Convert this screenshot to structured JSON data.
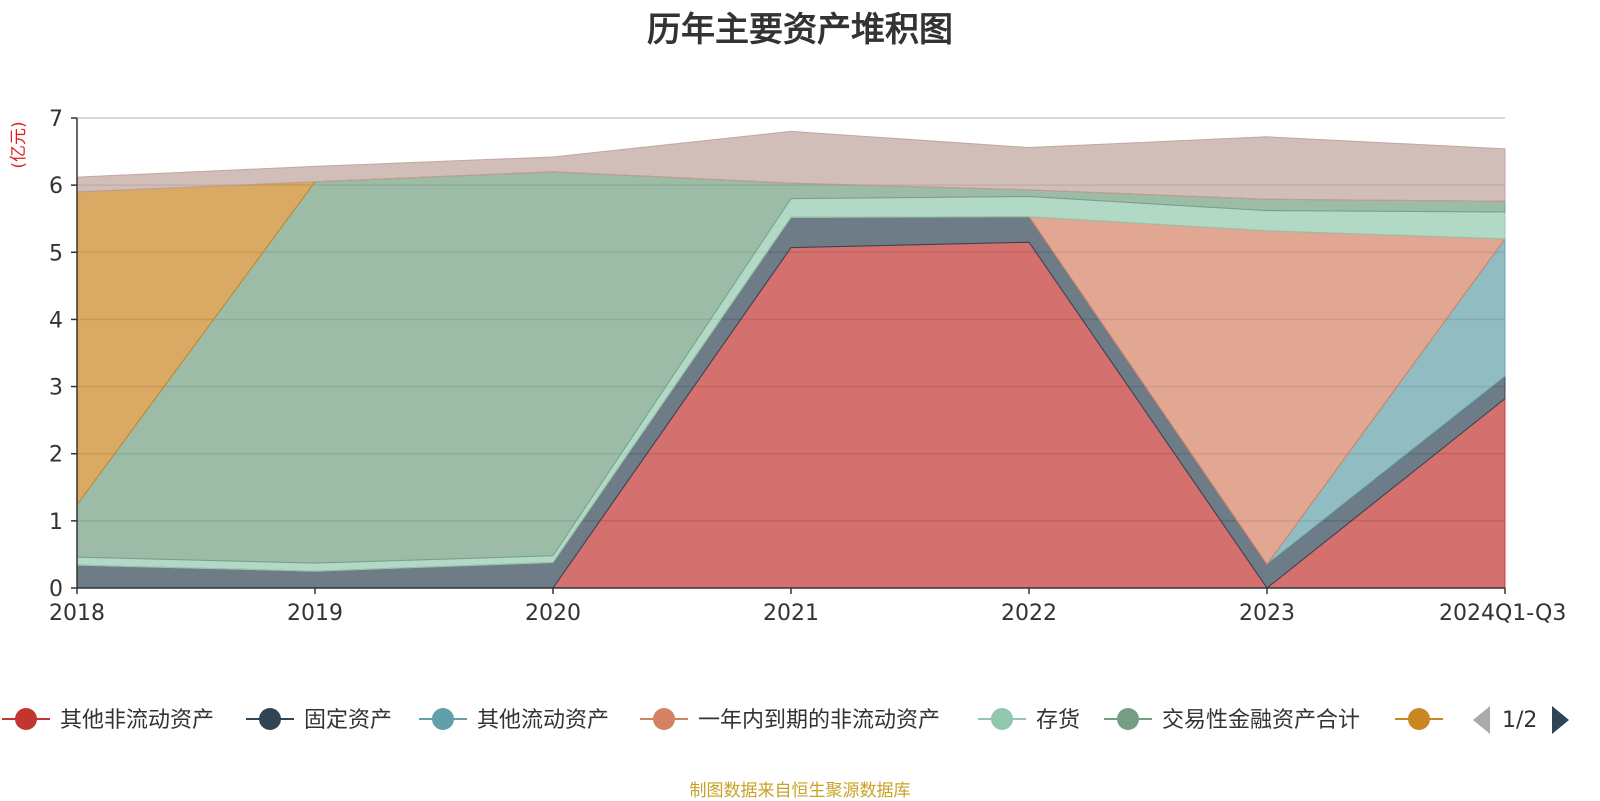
{
  "chart_data": {
    "type": "area",
    "stacked": true,
    "title": "历年主要资产堆积图",
    "ylabel": "(亿元)",
    "ylim": [
      0,
      7
    ],
    "yticks": [
      0,
      1,
      2,
      3,
      4,
      5,
      6,
      7
    ],
    "categories": [
      "2018",
      "2019",
      "2020",
      "2021",
      "2022",
      "2023",
      "2024Q1-Q3"
    ],
    "grid": true,
    "legend_position": "bottom",
    "series": [
      {
        "name": "其他非流动资产",
        "color": "#c23531",
        "values": [
          0.0,
          0.0,
          0.0,
          5.07,
          5.15,
          0.0,
          2.82
        ]
      },
      {
        "name": "固定资产",
        "color": "#2f4554",
        "values": [
          0.34,
          0.25,
          0.38,
          0.45,
          0.38,
          0.35,
          0.33
        ]
      },
      {
        "name": "其他流动资产",
        "color": "#61a0a8",
        "values": [
          0.0,
          0.0,
          0.0,
          0.0,
          0.0,
          0.0,
          2.05
        ]
      },
      {
        "name": "一年内到期的非流动资产",
        "color": "#d48265",
        "values": [
          0.0,
          0.0,
          0.0,
          0.0,
          0.0,
          4.97,
          0.0
        ]
      },
      {
        "name": "存货",
        "color": "#91c7ae",
        "values": [
          0.12,
          0.12,
          0.1,
          0.28,
          0.3,
          0.3,
          0.4
        ]
      },
      {
        "name": "交易性金融资产合计",
        "color": "#749f83",
        "values": [
          0.78,
          5.68,
          5.72,
          0.23,
          0.1,
          0.17,
          0.16
        ]
      },
      {
        "name": "",
        "color": "#ca8622",
        "values": [
          4.66,
          0.0,
          0.0,
          0.0,
          0.0,
          0.0,
          0.0
        ]
      },
      {
        "name": "",
        "color": "#bda29a",
        "values": [
          0.22,
          0.23,
          0.22,
          0.77,
          0.63,
          0.93,
          0.78
        ]
      }
    ]
  },
  "legend": {
    "page_indicator": "1/2",
    "items": [
      "其他非流动资产",
      "固定资产",
      "其他流动资产",
      "一年内到期的非流动资产",
      "存货",
      "交易性金融资产合计",
      ""
    ]
  },
  "footer": {
    "source_note": "制图数据来自恒生聚源数据库"
  }
}
